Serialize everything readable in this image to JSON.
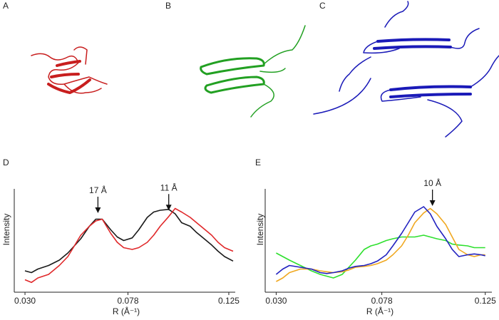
{
  "panel_labels": [
    "A",
    "B",
    "C"
  ],
  "chart_data": [
    {
      "type": "line",
      "panel_label": "D",
      "ylabel": "Intensity",
      "xlabel": "R (Å⁻¹)",
      "xlim": [
        0.025,
        0.128
      ],
      "xticks": [
        {
          "value": 0.03,
          "label": "0.030"
        },
        0.078,
        0.125
      ],
      "ylim": [
        0,
        1.2
      ],
      "x": [
        0.03,
        0.033,
        0.036,
        0.041,
        0.046,
        0.05,
        0.053,
        0.056,
        0.06,
        0.063,
        0.066,
        0.07,
        0.073,
        0.076,
        0.08,
        0.083,
        0.087,
        0.09,
        0.093,
        0.097,
        0.1,
        0.103,
        0.107,
        0.11,
        0.113,
        0.117,
        0.12,
        0.123,
        0.127
      ],
      "series": [
        {
          "color": "#1a1a1a",
          "values": [
            0.2,
            0.18,
            0.22,
            0.26,
            0.32,
            0.4,
            0.48,
            0.56,
            0.7,
            0.78,
            0.78,
            0.66,
            0.58,
            0.54,
            0.57,
            0.66,
            0.8,
            0.86,
            0.88,
            0.89,
            0.84,
            0.74,
            0.7,
            0.63,
            0.57,
            0.49,
            0.42,
            0.36,
            0.31
          ]
        },
        {
          "color": "#e0282a",
          "values": [
            0.1,
            0.07,
            0.12,
            0.16,
            0.26,
            0.36,
            0.48,
            0.6,
            0.7,
            0.76,
            0.78,
            0.62,
            0.52,
            0.46,
            0.44,
            0.46,
            0.52,
            0.6,
            0.7,
            0.81,
            0.9,
            0.86,
            0.8,
            0.74,
            0.68,
            0.6,
            0.52,
            0.46,
            0.42
          ]
        }
      ],
      "annotations": [
        {
          "text": "17 Å",
          "x": 0.064,
          "y": 0.84
        },
        {
          "text": "11 Å",
          "x": 0.097,
          "y": 0.87
        }
      ]
    },
    {
      "type": "line",
      "panel_label": "E",
      "ylabel": "Intensity",
      "xlabel": "R (Å⁻¹)",
      "xlim": [
        0.025,
        0.128
      ],
      "xticks": [
        {
          "value": 0.03,
          "label": "0.030"
        },
        0.078,
        0.125
      ],
      "ylim": [
        0,
        1.2
      ],
      "x": [
        0.03,
        0.033,
        0.036,
        0.041,
        0.046,
        0.05,
        0.053,
        0.056,
        0.06,
        0.063,
        0.066,
        0.07,
        0.073,
        0.076,
        0.08,
        0.083,
        0.087,
        0.09,
        0.093,
        0.097,
        0.1,
        0.103,
        0.107,
        0.11,
        0.113,
        0.117,
        0.12,
        0.123,
        0.125
      ],
      "series": [
        {
          "color": "#2ee02e",
          "values": [
            0.4,
            0.36,
            0.32,
            0.26,
            0.2,
            0.16,
            0.14,
            0.12,
            0.16,
            0.24,
            0.32,
            0.44,
            0.48,
            0.5,
            0.54,
            0.56,
            0.58,
            0.58,
            0.58,
            0.6,
            0.58,
            0.56,
            0.54,
            0.5,
            0.49,
            0.48,
            0.46,
            0.46,
            0.46
          ]
        },
        {
          "color": "#f0a820",
          "values": [
            0.08,
            0.12,
            0.18,
            0.22,
            0.22,
            0.2,
            0.19,
            0.18,
            0.19,
            0.21,
            0.24,
            0.25,
            0.26,
            0.28,
            0.32,
            0.38,
            0.48,
            0.6,
            0.74,
            0.85,
            0.9,
            0.84,
            0.72,
            0.58,
            0.44,
            0.38,
            0.36,
            0.38,
            0.38
          ]
        },
        {
          "color": "#2222c0",
          "values": [
            0.16,
            0.22,
            0.26,
            0.24,
            0.22,
            0.18,
            0.17,
            0.18,
            0.2,
            0.23,
            0.25,
            0.26,
            0.28,
            0.31,
            0.38,
            0.48,
            0.62,
            0.74,
            0.86,
            0.92,
            0.84,
            0.7,
            0.56,
            0.44,
            0.36,
            0.38,
            0.39,
            0.38,
            0.37
          ]
        }
      ],
      "annotations": [
        {
          "text": "10 Å",
          "x": 0.101,
          "y": 0.92
        }
      ]
    }
  ]
}
